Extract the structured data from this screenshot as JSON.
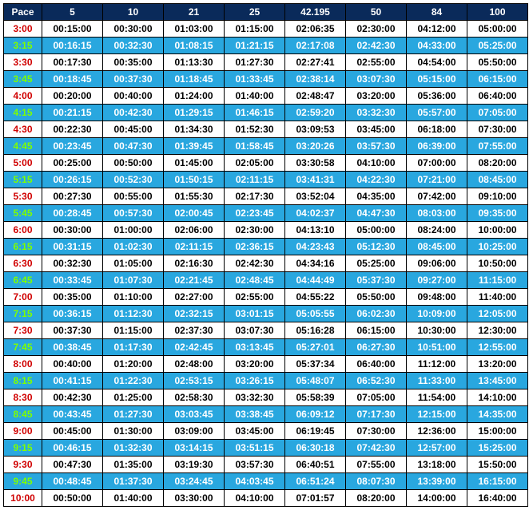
{
  "table": {
    "type": "table",
    "header_bg": "#0a2a5a",
    "header_color": "#ffffff",
    "row_alt_bg": "#29a7df",
    "row_alt_color": "#ffffff",
    "row_base_bg": "#ffffff",
    "row_base_color": "#000000",
    "pace_color_white_row": "#d00000",
    "pace_color_blue_row": "#7fff00",
    "border_color": "#000000",
    "font_size": 12,
    "columns": [
      "Pace",
      "5",
      "10",
      "21",
      "25",
      "42.195",
      "50",
      "84",
      "100"
    ],
    "rows": [
      [
        "3:00",
        "00:15:00",
        "00:30:00",
        "01:03:00",
        "01:15:00",
        "02:06:35",
        "02:30:00",
        "04:12:00",
        "05:00:00"
      ],
      [
        "3:15",
        "00:16:15",
        "00:32:30",
        "01:08:15",
        "01:21:15",
        "02:17:08",
        "02:42:30",
        "04:33:00",
        "05:25:00"
      ],
      [
        "3:30",
        "00:17:30",
        "00:35:00",
        "01:13:30",
        "01:27:30",
        "02:27:41",
        "02:55:00",
        "04:54:00",
        "05:50:00"
      ],
      [
        "3:45",
        "00:18:45",
        "00:37:30",
        "01:18:45",
        "01:33:45",
        "02:38:14",
        "03:07:30",
        "05:15:00",
        "06:15:00"
      ],
      [
        "4:00",
        "00:20:00",
        "00:40:00",
        "01:24:00",
        "01:40:00",
        "02:48:47",
        "03:20:00",
        "05:36:00",
        "06:40:00"
      ],
      [
        "4:15",
        "00:21:15",
        "00:42:30",
        "01:29:15",
        "01:46:15",
        "02:59:20",
        "03:32:30",
        "05:57:00",
        "07:05:00"
      ],
      [
        "4:30",
        "00:22:30",
        "00:45:00",
        "01:34:30",
        "01:52:30",
        "03:09:53",
        "03:45:00",
        "06:18:00",
        "07:30:00"
      ],
      [
        "4:45",
        "00:23:45",
        "00:47:30",
        "01:39:45",
        "01:58:45",
        "03:20:26",
        "03:57:30",
        "06:39:00",
        "07:55:00"
      ],
      [
        "5:00",
        "00:25:00",
        "00:50:00",
        "01:45:00",
        "02:05:00",
        "03:30:58",
        "04:10:00",
        "07:00:00",
        "08:20:00"
      ],
      [
        "5:15",
        "00:26:15",
        "00:52:30",
        "01:50:15",
        "02:11:15",
        "03:41:31",
        "04:22:30",
        "07:21:00",
        "08:45:00"
      ],
      [
        "5:30",
        "00:27:30",
        "00:55:00",
        "01:55:30",
        "02:17:30",
        "03:52:04",
        "04:35:00",
        "07:42:00",
        "09:10:00"
      ],
      [
        "5:45",
        "00:28:45",
        "00:57:30",
        "02:00:45",
        "02:23:45",
        "04:02:37",
        "04:47:30",
        "08:03:00",
        "09:35:00"
      ],
      [
        "6:00",
        "00:30:00",
        "01:00:00",
        "02:06:00",
        "02:30:00",
        "04:13:10",
        "05:00:00",
        "08:24:00",
        "10:00:00"
      ],
      [
        "6:15",
        "00:31:15",
        "01:02:30",
        "02:11:15",
        "02:36:15",
        "04:23:43",
        "05:12:30",
        "08:45:00",
        "10:25:00"
      ],
      [
        "6:30",
        "00:32:30",
        "01:05:00",
        "02:16:30",
        "02:42:30",
        "04:34:16",
        "05:25:00",
        "09:06:00",
        "10:50:00"
      ],
      [
        "6:45",
        "00:33:45",
        "01:07:30",
        "02:21:45",
        "02:48:45",
        "04:44:49",
        "05:37:30",
        "09:27:00",
        "11:15:00"
      ],
      [
        "7:00",
        "00:35:00",
        "01:10:00",
        "02:27:00",
        "02:55:00",
        "04:55:22",
        "05:50:00",
        "09:48:00",
        "11:40:00"
      ],
      [
        "7:15",
        "00:36:15",
        "01:12:30",
        "02:32:15",
        "03:01:15",
        "05:05:55",
        "06:02:30",
        "10:09:00",
        "12:05:00"
      ],
      [
        "7:30",
        "00:37:30",
        "01:15:00",
        "02:37:30",
        "03:07:30",
        "05:16:28",
        "06:15:00",
        "10:30:00",
        "12:30:00"
      ],
      [
        "7:45",
        "00:38:45",
        "01:17:30",
        "02:42:45",
        "03:13:45",
        "05:27:01",
        "06:27:30",
        "10:51:00",
        "12:55:00"
      ],
      [
        "8:00",
        "00:40:00",
        "01:20:00",
        "02:48:00",
        "03:20:00",
        "05:37:34",
        "06:40:00",
        "11:12:00",
        "13:20:00"
      ],
      [
        "8:15",
        "00:41:15",
        "01:22:30",
        "02:53:15",
        "03:26:15",
        "05:48:07",
        "06:52:30",
        "11:33:00",
        "13:45:00"
      ],
      [
        "8:30",
        "00:42:30",
        "01:25:00",
        "02:58:30",
        "03:32:30",
        "05:58:39",
        "07:05:00",
        "11:54:00",
        "14:10:00"
      ],
      [
        "8:45",
        "00:43:45",
        "01:27:30",
        "03:03:45",
        "03:38:45",
        "06:09:12",
        "07:17:30",
        "12:15:00",
        "14:35:00"
      ],
      [
        "9:00",
        "00:45:00",
        "01:30:00",
        "03:09:00",
        "03:45:00",
        "06:19:45",
        "07:30:00",
        "12:36:00",
        "15:00:00"
      ],
      [
        "9:15",
        "00:46:15",
        "01:32:30",
        "03:14:15",
        "03:51:15",
        "06:30:18",
        "07:42:30",
        "12:57:00",
        "15:25:00"
      ],
      [
        "9:30",
        "00:47:30",
        "01:35:00",
        "03:19:30",
        "03:57:30",
        "06:40:51",
        "07:55:00",
        "13:18:00",
        "15:50:00"
      ],
      [
        "9:45",
        "00:48:45",
        "01:37:30",
        "03:24:45",
        "04:03:45",
        "06:51:24",
        "08:07:30",
        "13:39:00",
        "16:15:00"
      ],
      [
        "10:00",
        "00:50:00",
        "01:40:00",
        "03:30:00",
        "04:10:00",
        "07:01:57",
        "08:20:00",
        "14:00:00",
        "16:40:00"
      ]
    ]
  }
}
